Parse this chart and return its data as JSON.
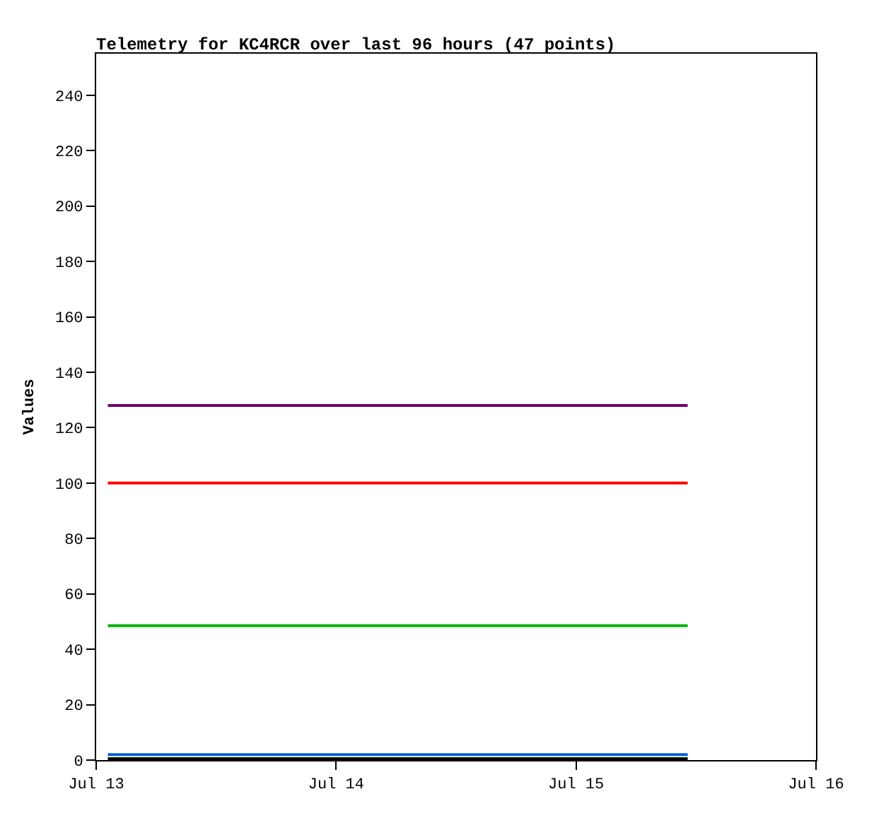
{
  "chart_data": {
    "type": "line",
    "title": "Telemetry for KC4RCR over last 96 hours (47 points)",
    "ylabel": "Values",
    "x": [
      "--07-13T01:10",
      "--07-15T11:10"
    ],
    "series": [
      {
        "color": "#700070",
        "values": [
          128,
          128
        ]
      },
      {
        "color": "#ff0000",
        "values": [
          100,
          100
        ]
      },
      {
        "color": "#00b000",
        "values": [
          48.5,
          48.5
        ]
      },
      {
        "color": "#0060d0",
        "values": [
          2,
          2
        ]
      },
      {
        "color": "#000000",
        "values": [
          0.5,
          0.5
        ]
      }
    ],
    "xlim": [
      "--07-13",
      "--07-16"
    ],
    "xticks": [
      {
        "value": "--07-13",
        "label": "Jul 13"
      },
      {
        "value": "--07-14",
        "label": "Jul 14"
      },
      {
        "value": "--07-15",
        "label": "Jul 15"
      },
      {
        "value": "--07-16",
        "label": "Jul 16"
      }
    ],
    "ylim": [
      0,
      255
    ],
    "yticks": [
      0,
      20,
      40,
      60,
      80,
      100,
      120,
      140,
      160,
      180,
      200,
      220,
      240
    ],
    "grid": false,
    "marker": "none",
    "line_style": "solid"
  }
}
